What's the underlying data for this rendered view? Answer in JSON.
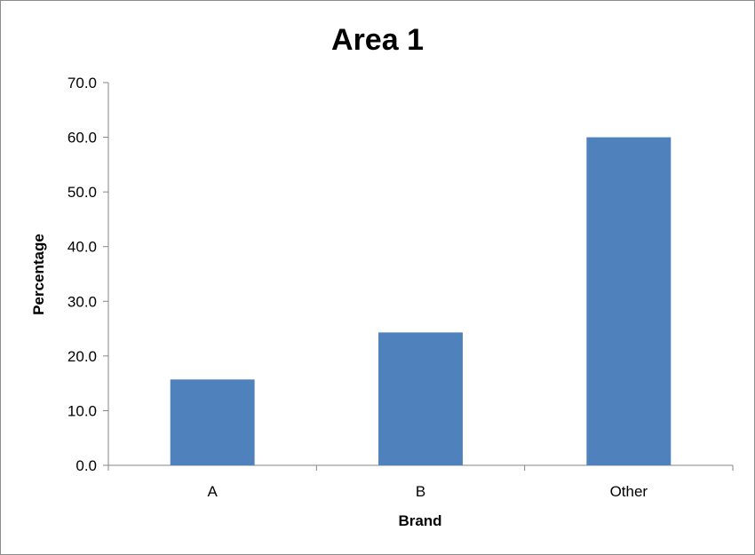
{
  "chart_data": {
    "type": "bar",
    "title": "Area 1",
    "xlabel": "Brand",
    "ylabel": "Percentage",
    "categories": [
      "A",
      "B",
      "Other"
    ],
    "values": [
      15.7,
      24.3,
      60.0
    ],
    "ylim": [
      0,
      70
    ],
    "yticks": [
      "0.0",
      "10.0",
      "20.0",
      "30.0",
      "40.0",
      "50.0",
      "60.0",
      "70.0"
    ],
    "grid": false,
    "legend": "none",
    "bar_color": "#4F81BD"
  }
}
